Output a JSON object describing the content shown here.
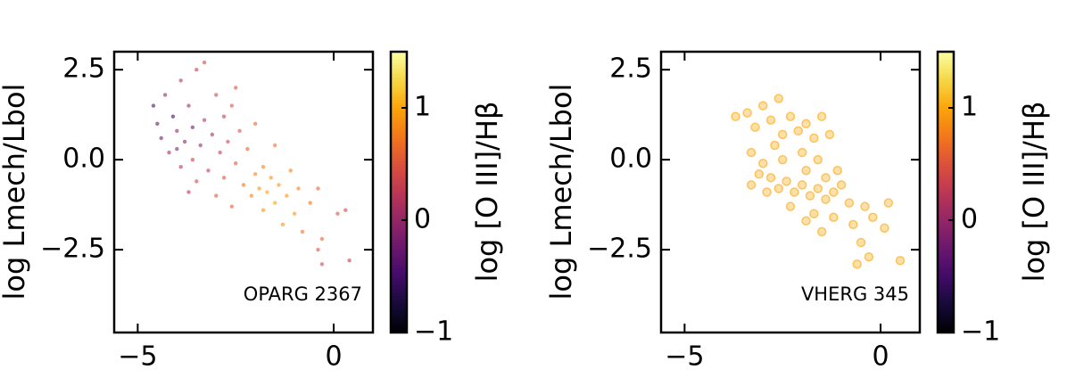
{
  "chart_data": [
    {
      "type": "scatter",
      "ylabel": "log Lmech/Lbol",
      "colorbar_label": "log [O III]/Hβ",
      "annotation": "OPARG 2367",
      "xlim": [
        -5.6,
        1.0
      ],
      "ylim": [
        -4.8,
        3.0
      ],
      "clim": [
        -1,
        1.5
      ],
      "colormap": "inferno",
      "xticks": [
        {
          "value": -5,
          "label": "−5"
        },
        0
      ],
      "yticks": [
        2.5,
        {
          "value": 0,
          "label": "0.0"
        },
        {
          "value": -2.5,
          "label": "−2.5"
        }
      ],
      "cticks": [
        {
          "value": -1,
          "label": "−1"
        },
        0,
        1
      ],
      "x": [
        -4.6,
        -4.5,
        -4.4,
        -4.3,
        -4.2,
        -4.1,
        -4.0,
        -3.9,
        -3.9,
        -3.8,
        -3.7,
        -3.6,
        -3.6,
        -3.5,
        -3.5,
        -3.4,
        -3.3,
        -3.2,
        -3.1,
        -3.0,
        -3.0,
        -2.9,
        -2.8,
        -2.8,
        -2.7,
        -2.6,
        -2.5,
        -2.5,
        -2.4,
        -2.3,
        -2.2,
        -2.1,
        -2.0,
        -2.0,
        -1.9,
        -1.8,
        -1.8,
        -1.7,
        -1.6,
        -1.5,
        -1.5,
        -1.4,
        -1.3,
        -1.2,
        -1.1,
        -1.0,
        -0.9,
        -0.8,
        -0.6,
        -0.4,
        -0.3,
        0.1,
        -0.4,
        -0.3,
        0.3,
        0.4,
        -3.7,
        -4.0,
        -3.3,
        -2.6
      ],
      "values": [
        1.5,
        1.0,
        0.6,
        1.8,
        0.2,
        1.2,
        0.8,
        2.2,
        -0.2,
        0.5,
        1.5,
        0.0,
        0.9,
        2.5,
        -0.6,
        0.4,
        1.1,
        -0.3,
        0.7,
        1.8,
        -1.0,
        0.2,
        -0.5,
        1.2,
        0.5,
        -1.3,
        -0.1,
        2.0,
        0.8,
        -0.7,
        0.3,
        -1.0,
        -0.4,
        1.0,
        -0.8,
        -0.2,
        -1.4,
        -0.9,
        -0.5,
        0.4,
        -1.2,
        -0.7,
        -1.8,
        -1.0,
        -0.3,
        -1.5,
        -0.8,
        -2.0,
        -1.2,
        -0.8,
        -2.2,
        -1.5,
        -2.5,
        -2.9,
        -1.4,
        -2.8,
        -0.9,
        0.3,
        2.7,
        1.5
      ],
      "c": [
        -0.4,
        -0.3,
        -0.2,
        0.0,
        0.1,
        -0.5,
        0.0,
        0.2,
        0.2,
        -0.1,
        0.1,
        0.3,
        -0.2,
        0.3,
        0.4,
        0.0,
        0.2,
        0.3,
        0.1,
        0.4,
        0.5,
        0.3,
        0.5,
        0.3,
        0.4,
        0.6,
        0.5,
        0.5,
        0.5,
        0.7,
        0.6,
        0.8,
        0.8,
        0.6,
        0.9,
        0.8,
        0.9,
        1.0,
        0.9,
        0.7,
        1.0,
        0.9,
        0.9,
        0.9,
        0.8,
        0.9,
        0.8,
        0.7,
        0.7,
        0.6,
        0.6,
        0.5,
        0.5,
        0.4,
        0.4,
        0.3,
        0.2,
        -0.1,
        0.4,
        0.5
      ]
    },
    {
      "type": "scatter",
      "ylabel": "log Lmech/Lbol",
      "colorbar_label": "log [O III]/Hβ",
      "annotation": "VHERG 345",
      "xlim": [
        -5.6,
        1.0
      ],
      "ylim": [
        -4.8,
        3.0
      ],
      "clim": [
        -1,
        1.5
      ],
      "colormap": "inferno",
      "xticks": [
        {
          "value": -5,
          "label": "−5"
        },
        0
      ],
      "yticks": [
        2.5,
        {
          "value": 0,
          "label": "0.0"
        },
        {
          "value": -2.5,
          "label": "−2.5"
        }
      ],
      "cticks": [
        {
          "value": -1,
          "label": "−1"
        },
        0,
        1
      ],
      "x": [
        -3.7,
        -3.4,
        -3.2,
        -3.0,
        -2.8,
        -2.6,
        -2.5,
        -2.3,
        -2.1,
        -1.9,
        -1.7,
        -1.5,
        -1.3,
        -3.3,
        -3.0,
        -2.8,
        -2.6,
        -2.4,
        -2.2,
        -2.0,
        -1.8,
        -1.6,
        -1.4,
        -1.2,
        -1.0,
        -0.8,
        -2.9,
        -3.1,
        -2.5,
        -2.0,
        -1.6,
        -1.1,
        -2.3,
        -1.7,
        -1.2,
        -1.9,
        -0.7,
        -0.4,
        -0.2,
        0.2,
        0.1,
        -0.5,
        -0.3,
        -0.6,
        0.5,
        -1.5,
        -3.3,
        -2.7,
        -1.9,
        -1.4
      ],
      "values": [
        1.2,
        1.3,
        0.9,
        1.5,
        1.1,
        1.7,
        0.7,
        1.2,
        0.8,
        1.0,
        0.6,
        1.2,
        0.7,
        0.2,
        -0.1,
        -0.5,
        -0.8,
        -0.6,
        -0.9,
        -0.7,
        -1.0,
        -0.8,
        -1.1,
        -0.9,
        -0.7,
        -1.2,
        -0.9,
        -0.4,
        0.0,
        0.2,
        0.0,
        -0.3,
        -1.3,
        -1.5,
        -1.6,
        -1.7,
        -1.8,
        -1.3,
        -1.6,
        -1.2,
        -1.9,
        -2.3,
        -2.7,
        -2.9,
        -2.8,
        -2.0,
        -0.7,
        0.4,
        -0.3,
        -0.5
      ],
      "c": [
        1.0,
        1.0,
        1.0,
        1.0,
        1.0,
        1.0,
        1.0,
        1.0,
        1.0,
        1.0,
        1.0,
        1.0,
        1.0,
        1.0,
        1.0,
        1.0,
        1.0,
        1.0,
        1.0,
        1.0,
        1.0,
        1.0,
        1.0,
        1.0,
        1.0,
        1.0,
        1.0,
        1.0,
        1.0,
        1.0,
        1.0,
        1.0,
        1.0,
        1.0,
        1.0,
        1.0,
        1.0,
        1.0,
        1.0,
        1.0,
        1.0,
        1.0,
        1.0,
        1.0,
        1.0,
        1.0,
        1.0,
        1.0,
        1.0,
        1.0
      ]
    }
  ]
}
